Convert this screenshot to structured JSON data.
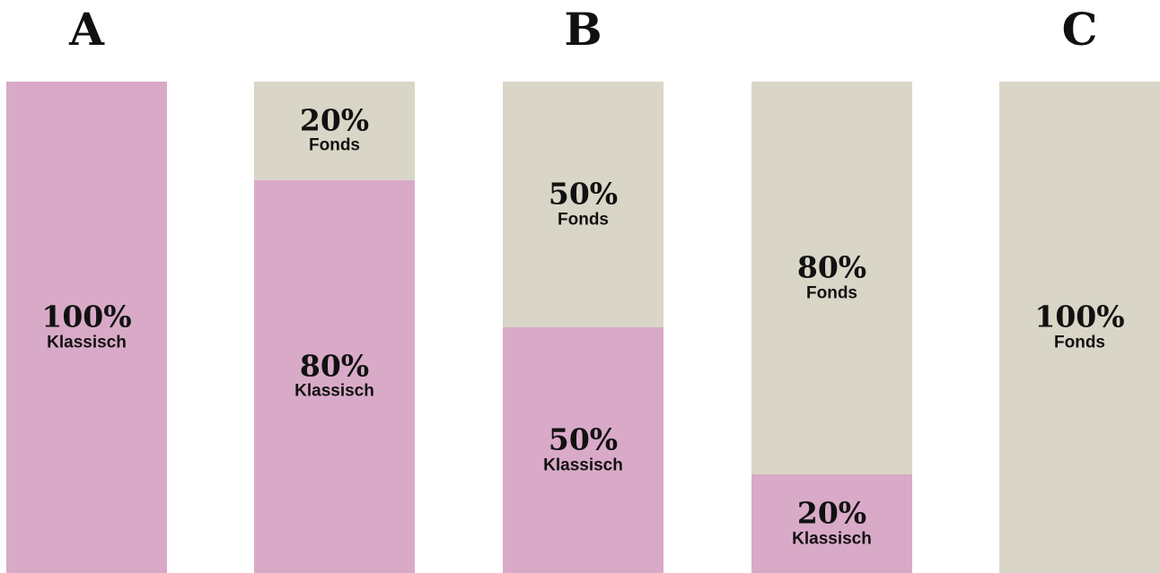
{
  "chart_data": {
    "type": "bar",
    "stacked": true,
    "column_letters": [
      {
        "text": "A",
        "category_index": 0
      },
      {
        "text": "B",
        "category_index": 2
      },
      {
        "text": "C",
        "category_index": 4
      }
    ],
    "categories": [
      "",
      "",
      "",
      "",
      ""
    ],
    "ylim": [
      0,
      100
    ],
    "grid": false,
    "series": [
      {
        "name": "Klassisch",
        "color": "#d9aac8",
        "values": [
          100,
          80,
          50,
          20,
          0
        ]
      },
      {
        "name": "Fonds",
        "color": "#d9d6c7",
        "values": [
          0,
          20,
          50,
          80,
          100
        ]
      }
    ],
    "data_labels": {
      "suffix": "%"
    }
  }
}
